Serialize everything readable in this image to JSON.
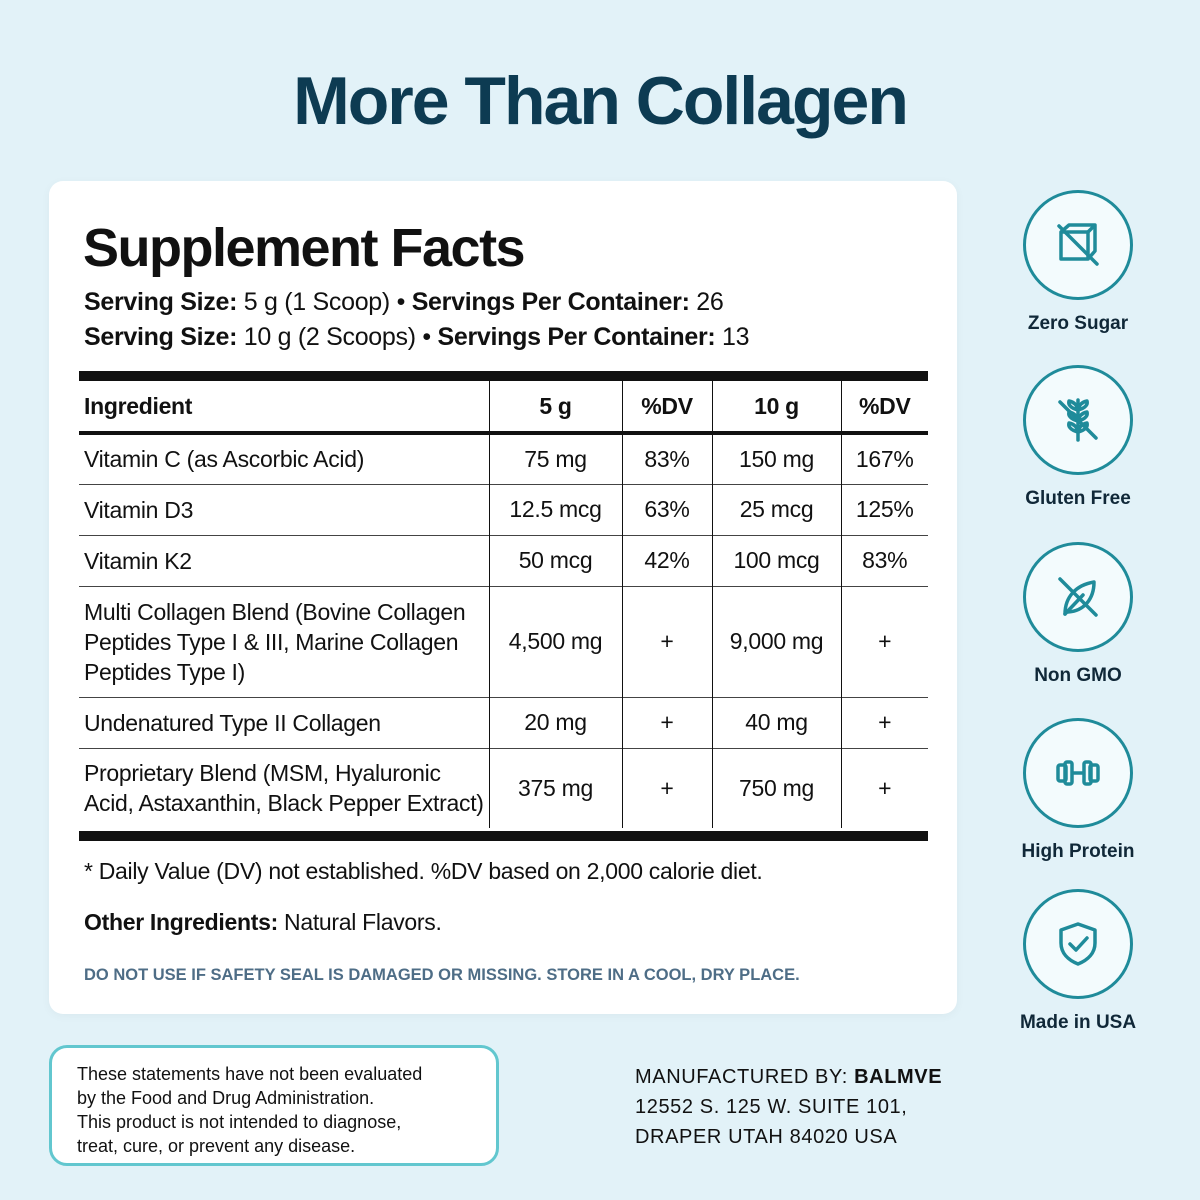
{
  "headline": "More Than Collagen",
  "facts": {
    "title": "Supplement Facts",
    "serving_1": {
      "size_label": "Serving Size:",
      "size_value": " 5 g (1 Scoop) • ",
      "per_label": "Servings Per Container:",
      "per_value": " 26"
    },
    "serving_2": {
      "size_label": "Serving Size:",
      "size_value": " 10 g (2 Scoops) • ",
      "per_label": "Servings Per Container:",
      "per_value": " 13"
    },
    "headers": [
      "Ingredient",
      "5 g",
      "%DV",
      "10 g",
      "%DV"
    ],
    "rows": [
      {
        "ingredient": "Vitamin C (as Ascorbic Acid)",
        "amount_5g": "75 mg",
        "dv_5g": "83%",
        "amount_10g": "150 mg",
        "dv_10g": "167%"
      },
      {
        "ingredient": "Vitamin D3",
        "amount_5g": "12.5 mcg",
        "dv_5g": "63%",
        "amount_10g": "25 mcg",
        "dv_10g": "125%"
      },
      {
        "ingredient": "Vitamin K2",
        "amount_5g": "50 mcg",
        "dv_5g": "42%",
        "amount_10g": "100 mcg",
        "dv_10g": "83%"
      },
      {
        "ingredient": "Multi Collagen Blend (Bovine Collagen Peptides Type I & III, Marine Collagen Peptides Type I)",
        "amount_5g": "4,500 mg",
        "dv_5g": "+",
        "amount_10g": "9,000 mg",
        "dv_10g": "+"
      },
      {
        "ingredient": "Undenatured Type II Collagen",
        "amount_5g": "20 mg",
        "dv_5g": "+",
        "amount_10g": "40 mg",
        "dv_10g": "+"
      },
      {
        "ingredient": "Proprietary Blend (MSM, Hyaluronic Acid, Astaxanthin, Black Pepper Extract)",
        "amount_5g": "375 mg",
        "dv_5g": "+",
        "amount_10g": "750 mg",
        "dv_10g": "+"
      }
    ],
    "disclaimer": "* Daily Value (DV) not established. %DV based on 2,000 calorie diet.",
    "other_ingredients_label": "Other Ingredients:",
    "other_ingredients_value": " Natural Flavors.",
    "warning": "DO NOT USE IF SAFETY SEAL IS DAMAGED OR MISSING. STORE IN A COOL, DRY PLACE."
  },
  "badges": [
    {
      "label": "Zero Sugar",
      "icon": "no-sugar-cube-icon"
    },
    {
      "label": "Gluten Free",
      "icon": "no-wheat-icon"
    },
    {
      "label": "Non GMO",
      "icon": "no-gmo-leaf-icon"
    },
    {
      "label": "High Protein",
      "icon": "dumbbell-icon"
    },
    {
      "label": "Made in USA",
      "icon": "shield-check-icon"
    }
  ],
  "fda_notice": [
    "These statements have not been evaluated",
    "by the Food and Drug Administration.",
    "This product is not intended to diagnose,",
    "treat, cure, or prevent any disease."
  ],
  "manufacturer": {
    "label": "MANUFACTURED BY: ",
    "name": "BALMVE",
    "address_1": "12552 S. 125 W. SUITE 101,",
    "address_2": "DRAPER UTAH 84020 USA"
  },
  "colors": {
    "background": "#e2f2f8",
    "headline": "#0d3b52",
    "accent": "#1f8b9a",
    "notice_border": "#62c7cf",
    "warning_text": "#4e6d86"
  }
}
